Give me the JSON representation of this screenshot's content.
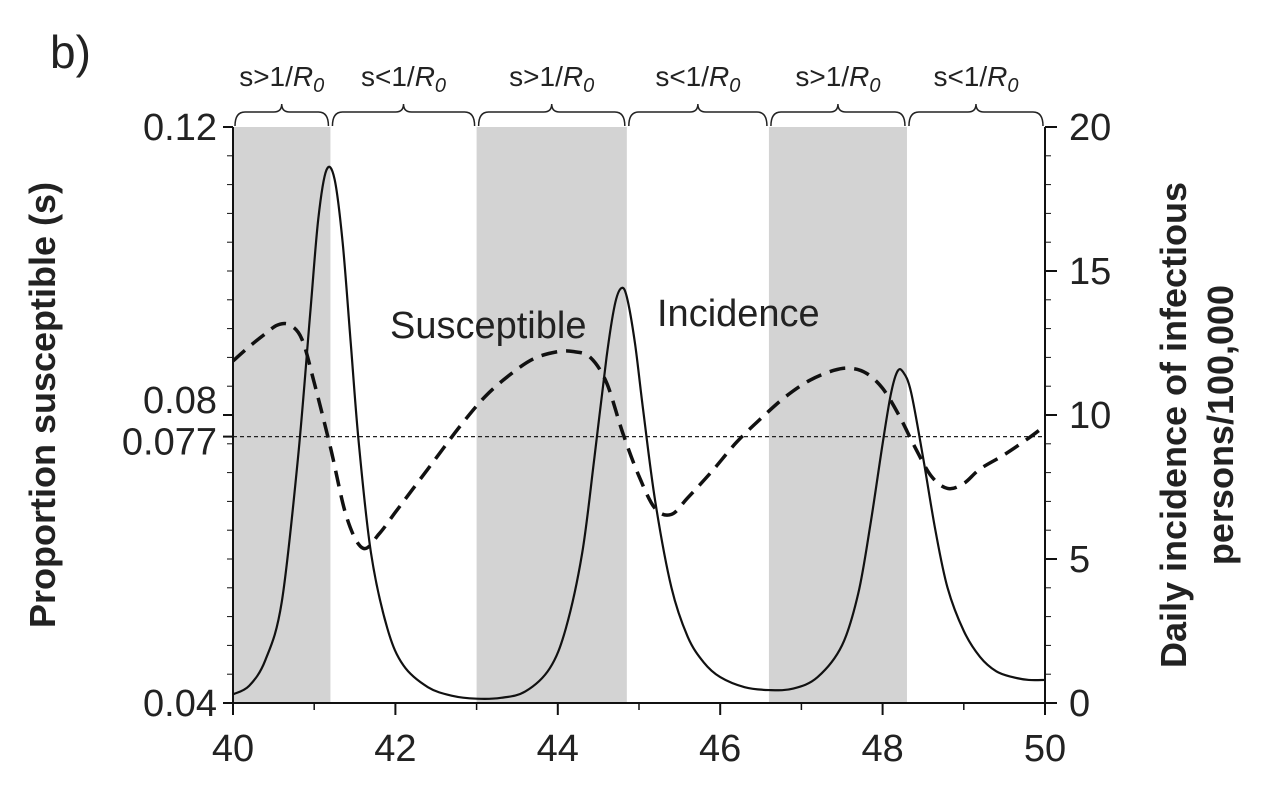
{
  "panel_label": "b)",
  "chart_data": {
    "type": "line",
    "xlim": [
      40,
      50
    ],
    "x_ticks": [
      "40",
      "42",
      "44",
      "46",
      "48",
      "50"
    ],
    "y_left": {
      "label": "Proportion susceptible (s)",
      "lim": [
        0.04,
        0.12
      ],
      "tick_labels": [
        "0.04",
        "0.077",
        "0.08",
        "0.12"
      ],
      "minor_ticks": [
        0.044,
        0.048,
        0.052,
        0.056,
        0.06,
        0.064,
        0.068,
        0.072,
        0.076,
        0.084,
        0.088,
        0.092,
        0.096,
        0.1,
        0.104,
        0.108,
        0.112,
        0.116
      ]
    },
    "y_right": {
      "label": [
        "Daily incidence of infectious",
        "persons/100,000"
      ],
      "lim": [
        0,
        20
      ],
      "tick_labels": [
        "0",
        "5",
        "10",
        "15",
        "20"
      ]
    },
    "threshold": {
      "value": 0.077,
      "style": "dotted"
    },
    "shaded_regions": [
      [
        40,
        41.2
      ],
      [
        43,
        44.85
      ],
      [
        46.6,
        48.3
      ]
    ],
    "regions": [
      {
        "from": 40,
        "to": 41.2,
        "label_prefix": "s>1/",
        "label_var": "R",
        "label_sub": "0"
      },
      {
        "from": 41.2,
        "to": 43,
        "label_prefix": "s<1/",
        "label_var": "R",
        "label_sub": "0"
      },
      {
        "from": 43,
        "to": 44.85,
        "label_prefix": "s>1/",
        "label_var": "R",
        "label_sub": "0"
      },
      {
        "from": 44.85,
        "to": 46.6,
        "label_prefix": "s<1/",
        "label_var": "R",
        "label_sub": "0"
      },
      {
        "from": 46.6,
        "to": 48.3,
        "label_prefix": "s>1/",
        "label_var": "R",
        "label_sub": "0"
      },
      {
        "from": 48.3,
        "to": 50,
        "label_prefix": "s<1/",
        "label_var": "R",
        "label_sub": "0"
      }
    ],
    "series": [
      {
        "name": "Susceptible",
        "axis": "left",
        "style": "dashed",
        "x": [
          40,
          40.2,
          40.4,
          40.55,
          40.7,
          40.85,
          41.0,
          41.2,
          41.4,
          41.6,
          41.8,
          42.0,
          42.2,
          42.5,
          42.8,
          43.1,
          43.4,
          43.7,
          44.0,
          44.2,
          44.4,
          44.6,
          44.8,
          45.0,
          45.2,
          45.4,
          45.6,
          45.9,
          46.2,
          46.5,
          46.8,
          47.1,
          47.4,
          47.6,
          47.8,
          48.0,
          48.2,
          48.4,
          48.6,
          48.8,
          49.0,
          49.2,
          49.5,
          49.8,
          50.0
        ],
        "y": [
          0.0875,
          0.0895,
          0.0913,
          0.0925,
          0.0925,
          0.0905,
          0.0845,
          0.0755,
          0.0658,
          0.0615,
          0.0635,
          0.0665,
          0.0695,
          0.074,
          0.0785,
          0.0825,
          0.0855,
          0.0878,
          0.0888,
          0.0888,
          0.088,
          0.0845,
          0.0775,
          0.0715,
          0.067,
          0.0662,
          0.0685,
          0.0722,
          0.0762,
          0.0795,
          0.0825,
          0.0848,
          0.0862,
          0.0865,
          0.0858,
          0.0837,
          0.08,
          0.0755,
          0.0715,
          0.0698,
          0.0705,
          0.0725,
          0.0745,
          0.0768,
          0.0785
        ]
      },
      {
        "name": "Incidence",
        "axis": "right",
        "style": "solid",
        "x": [
          40,
          40.2,
          40.4,
          40.6,
          40.8,
          40.95,
          41.05,
          41.15,
          41.25,
          41.35,
          41.45,
          41.55,
          41.7,
          41.9,
          42.1,
          42.4,
          42.7,
          43.0,
          43.3,
          43.6,
          43.9,
          44.1,
          44.3,
          44.45,
          44.6,
          44.7,
          44.78,
          44.85,
          44.95,
          45.05,
          45.2,
          45.4,
          45.6,
          45.8,
          46.0,
          46.3,
          46.6,
          46.9,
          47.2,
          47.5,
          47.7,
          47.85,
          48.0,
          48.1,
          48.18,
          48.25,
          48.35,
          48.5,
          48.65,
          48.8,
          49.0,
          49.2,
          49.4,
          49.6,
          49.8,
          50.0
        ],
        "y": [
          0.3,
          0.6,
          1.5,
          3.5,
          8.5,
          13.5,
          16.8,
          18.5,
          18.2,
          16.0,
          12.5,
          9.0,
          5.2,
          2.6,
          1.3,
          0.55,
          0.25,
          0.15,
          0.18,
          0.4,
          1.2,
          2.6,
          5.2,
          8.5,
          12.0,
          13.8,
          14.4,
          14.1,
          12.5,
          10.2,
          7.0,
          4.0,
          2.3,
          1.4,
          0.9,
          0.55,
          0.45,
          0.5,
          0.9,
          2.0,
          3.8,
          6.2,
          9.0,
          10.7,
          11.5,
          11.5,
          10.8,
          8.5,
          6.0,
          4.0,
          2.5,
          1.6,
          1.1,
          0.9,
          0.8,
          0.8
        ]
      }
    ],
    "annotations": [
      "Susceptible",
      "Incidence"
    ]
  }
}
